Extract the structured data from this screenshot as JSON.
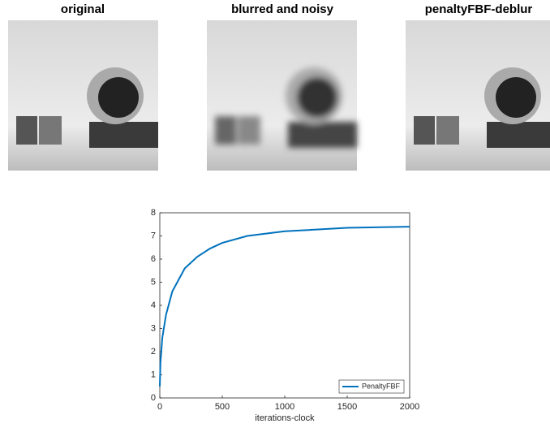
{
  "images": [
    {
      "title": "original"
    },
    {
      "title": "blurred and noisy"
    },
    {
      "title": "penaltyFBF-deblur"
    }
  ],
  "chart_data": {
    "type": "line",
    "x": [
      0,
      5,
      20,
      50,
      100,
      200,
      300,
      400,
      500,
      700,
      1000,
      1500,
      2000
    ],
    "series": [
      {
        "name": "PenaltyFBF",
        "color": "#0072bd",
        "values": [
          0.5,
          1.5,
          2.6,
          3.6,
          4.6,
          5.6,
          6.1,
          6.45,
          6.7,
          7.0,
          7.2,
          7.35,
          7.4
        ]
      }
    ],
    "xlabel": "iterations-clock",
    "xlim": [
      0,
      2000
    ],
    "xticks": [
      0,
      500,
      1000,
      1500,
      2000
    ],
    "ylim": [
      0,
      8
    ],
    "yticks": [
      0,
      1,
      2,
      3,
      4,
      5,
      6,
      7,
      8
    ],
    "legend": "lower right"
  }
}
